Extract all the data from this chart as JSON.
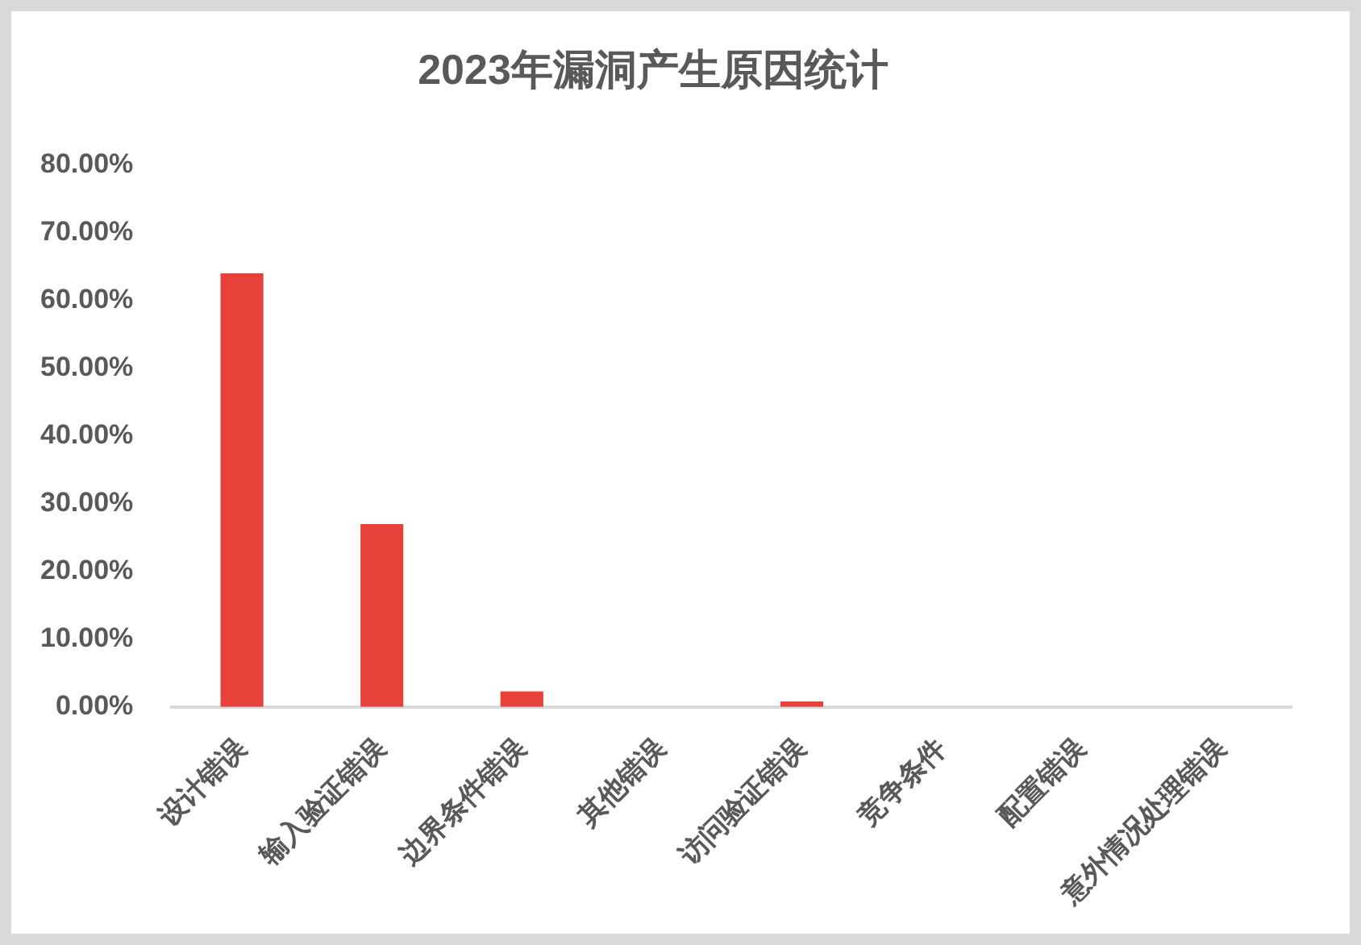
{
  "chart_data": {
    "type": "bar",
    "title": "2023年漏洞产生原因统计",
    "categories": [
      "设计错误",
      "输入验证错误",
      "边界条件错误",
      "其他错误",
      "访问验证错误",
      "竞争条件",
      "配置错误",
      "意外情况处理错误"
    ],
    "values": [
      64,
      27,
      2.3,
      0,
      0.8,
      0,
      0,
      0
    ],
    "color": "#e8413a",
    "ylim": [
      0,
      80
    ],
    "yticks": [
      {
        "value": 0,
        "label": "0.00%"
      },
      {
        "value": 10,
        "label": "10.00%"
      },
      {
        "value": 20,
        "label": "20.00%"
      },
      {
        "value": 30,
        "label": "30.00%"
      },
      {
        "value": 40,
        "label": "40.00%"
      },
      {
        "value": 50,
        "label": "50.00%"
      },
      {
        "value": 60,
        "label": "60.00%"
      },
      {
        "value": 70,
        "label": "70.00%"
      },
      {
        "value": 80,
        "label": "80.00%"
      }
    ],
    "grid": false,
    "legend": false
  }
}
